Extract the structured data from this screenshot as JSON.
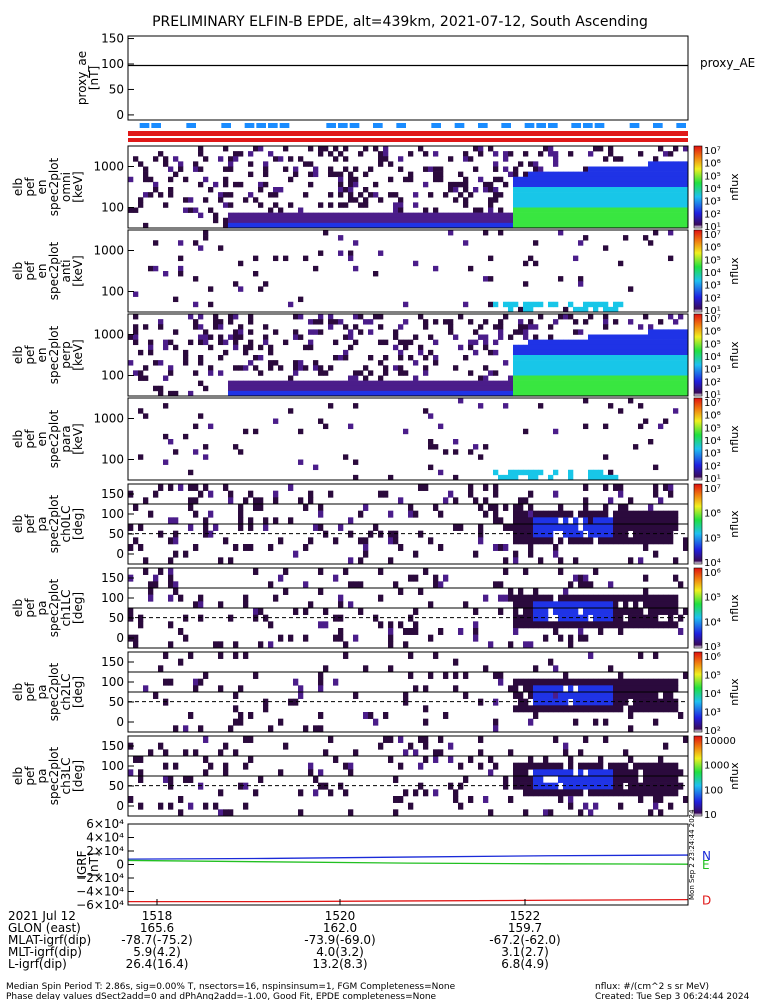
{
  "title": "PRELIMINARY ELFIN-B EPDE, alt=439km, 2021-07-12, South Ascending",
  "colors": {
    "axis": "#000000",
    "dark_purple": "#2b0a3d",
    "purple": "#4b1d8a",
    "blue": "#1f33e6",
    "cyan": "#18c6e8",
    "green": "#39e640",
    "red_bar": "#e01818",
    "blue_bar": "#1a8cff",
    "grf_n": "#1a2ad8",
    "grf_e": "#22c022",
    "grf_d": "#e01818"
  },
  "chart_data": [
    {
      "type": "line",
      "name": "proxy_ae",
      "ylabel_lines": [
        "proxy_ae",
        "[nT]"
      ],
      "legend": "proxy_AE",
      "yticks": [
        "150",
        "100",
        "50",
        "0"
      ],
      "ylim": [
        -10,
        155
      ],
      "series": [
        {
          "values": [
            97,
            97,
            97,
            97,
            97
          ]
        }
      ]
    },
    {
      "type": "heatmap",
      "name": "spectrogram-1",
      "ylabel_lines": [
        "elb",
        "pef",
        "en",
        "spec2plot",
        "omni",
        "[keV]"
      ],
      "yticks": [
        "1000",
        "100"
      ],
      "colorbar_label": "nflux",
      "colorbar_ticks": [
        "10⁷",
        "10⁶",
        "10⁵",
        "10⁴",
        "10³",
        "10²",
        "10¹"
      ],
      "density": 0.8
    },
    {
      "type": "heatmap",
      "name": "spectrogram-2",
      "ylabel_lines": [
        "elb",
        "pef",
        "en",
        "spec2plot",
        "anti",
        "[keV]"
      ],
      "yticks": [
        "1000",
        "100"
      ],
      "colorbar_label": "nflux",
      "colorbar_ticks": [
        "10⁷",
        "10⁶",
        "10⁵",
        "10⁴",
        "10³",
        "10²",
        "10¹"
      ],
      "density": 0.15
    },
    {
      "type": "heatmap",
      "name": "spectrogram-3",
      "ylabel_lines": [
        "elb",
        "pef",
        "en",
        "spec2plot",
        "perp",
        "[keV]"
      ],
      "yticks": [
        "1000",
        "100"
      ],
      "colorbar_label": "nflux",
      "colorbar_ticks": [
        "10⁷",
        "10⁶",
        "10⁵",
        "10⁴",
        "10³",
        "10²",
        "10¹"
      ],
      "density": 0.7
    },
    {
      "type": "heatmap",
      "name": "spectrogram-4",
      "ylabel_lines": [
        "elb",
        "pef",
        "en",
        "spec2plot",
        "para",
        "[keV]"
      ],
      "yticks": [
        "1000",
        "100"
      ],
      "colorbar_label": "nflux",
      "colorbar_ticks": [
        "10⁷",
        "10⁶",
        "10⁵",
        "10⁴",
        "10³",
        "10²",
        "10¹"
      ],
      "density": 0.12
    },
    {
      "type": "heatmap",
      "name": "pitch-angle-1",
      "ylabel_lines": [
        "elb",
        "pef",
        "pa",
        "spec2plot",
        "ch0LC",
        "[deg]"
      ],
      "yticks": [
        "150",
        "100",
        "50",
        "0"
      ],
      "colorbar_label": "nflux",
      "colorbar_ticks": [
        "10⁷",
        "10⁶",
        "10⁵",
        "10⁴"
      ],
      "density": 0.6
    },
    {
      "type": "heatmap",
      "name": "pitch-angle-2",
      "ylabel_lines": [
        "elb",
        "pef",
        "pa",
        "spec2plot",
        "ch1LC",
        "[deg]"
      ],
      "yticks": [
        "150",
        "100",
        "50",
        "0"
      ],
      "colorbar_label": "nflux",
      "colorbar_ticks": [
        "10⁶",
        "10⁵",
        "10⁴",
        "10³"
      ],
      "density": 0.4
    },
    {
      "type": "heatmap",
      "name": "pitch-angle-3",
      "ylabel_lines": [
        "elb",
        "pef",
        "pa",
        "spec2plot",
        "ch2LC",
        "[deg]"
      ],
      "yticks": [
        "150",
        "100",
        "50",
        "0"
      ],
      "colorbar_label": "nflux",
      "colorbar_ticks": [
        "10⁶",
        "10⁵",
        "10⁴",
        "10³",
        "10²"
      ],
      "density": 0.3
    },
    {
      "type": "heatmap",
      "name": "pitch-angle-4",
      "ylabel_lines": [
        "elb",
        "pef",
        "pa",
        "spec2plot",
        "ch3LC",
        "[deg]"
      ],
      "yticks": [
        "150",
        "100",
        "50",
        "0"
      ],
      "colorbar_label": "nflux",
      "colorbar_ticks": [
        "10000",
        "1000",
        "100",
        "10"
      ],
      "density": 0.45
    },
    {
      "type": "line",
      "name": "igrf",
      "ylabel_lines": [
        "IGRF",
        "[nT]"
      ],
      "yticks": [
        "6×10⁴",
        "4×10⁴",
        "2×10⁴",
        "0",
        "−2×10⁴",
        "−4×10⁴",
        "−6×10⁴"
      ],
      "ylim": [
        -60000,
        60000
      ],
      "series": [
        {
          "name": "N",
          "values": [
            8000,
            9000,
            11000,
            13000,
            14000
          ]
        },
        {
          "name": "E",
          "values": [
            6000,
            4000,
            2000,
            1000,
            500
          ]
        },
        {
          "name": "D",
          "values": [
            -55000,
            -55000,
            -54000,
            -53000,
            -52000
          ]
        }
      ]
    }
  ],
  "xaxis": {
    "columns": [
      {
        "label": "2021 Jul 12",
        "values": [
          "1518",
          "1520",
          "1522"
        ]
      },
      {
        "label": "GLON (east)",
        "values": [
          "165.6",
          "162.0",
          "159.7"
        ]
      },
      {
        "label": "MLAT-igrf(dip)",
        "values": [
          "-78.7(-75.2)",
          "-73.9(-69.0)",
          "-67.2(-62.0)"
        ]
      },
      {
        "label": "MLT-igrf(dip)",
        "values": [
          "5.9(4.2)",
          "4.0(3.2)",
          "3.1(2.7)"
        ]
      },
      {
        "label": "L-igrf(dip)",
        "values": [
          "26.4(16.4)",
          "13.2(8.3)",
          "6.8(4.9)"
        ]
      }
    ]
  },
  "side_stamp": "Mon Sep  2 23:24:44 2024",
  "footer": {
    "line1": "Median Spin Period T: 2.86s, sig=0.00% T, nsectors=16, nspinsinsum=1, FGM Completeness=None",
    "line2": "Phase delay values dSect2add=0 and dPhAng2add=-1.00, Good Fit, EPDE completeness=None",
    "unit": "nflux: #/(cm^2 s sr MeV)",
    "created": "Created: Tue Sep  3 06:24:44 2024"
  }
}
